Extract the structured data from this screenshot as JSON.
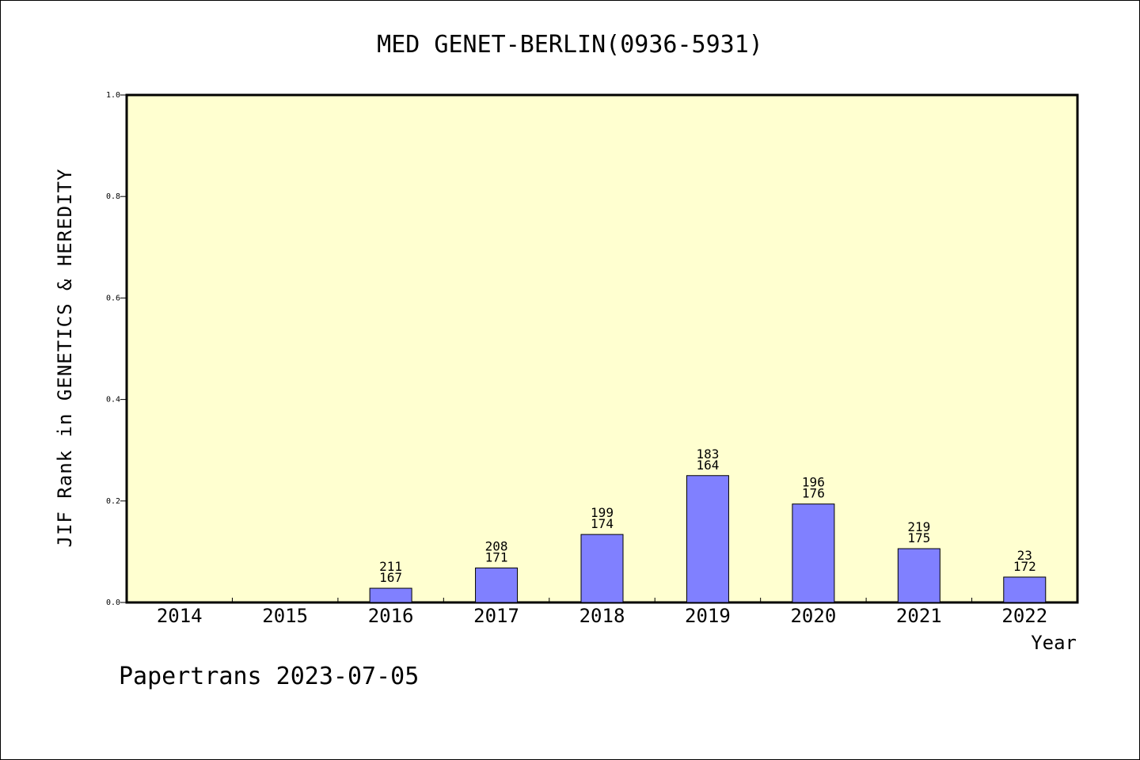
{
  "chart_data": {
    "type": "bar",
    "title": "MED GENET-BERLIN(0936-5931)",
    "xlabel": "Year",
    "ylabel": "JIF Rank in GENETICS & HEREDITY",
    "ylim": [
      0,
      1.0
    ],
    "yticks": [
      "0.0",
      "0.2",
      "0.4",
      "0.6",
      "0.8",
      "1.0"
    ],
    "categories": [
      "2014",
      "2015",
      "2016",
      "2017",
      "2018",
      "2019",
      "2020",
      "2021",
      "2022"
    ],
    "values": [
      null,
      null,
      0.028,
      0.068,
      0.134,
      0.25,
      0.194,
      0.106,
      0.05
    ],
    "total_counts": [
      "",
      "",
      "211",
      "208",
      "199",
      "183",
      "196",
      "219",
      "23"
    ],
    "rank_counts": [
      "",
      "",
      "167",
      "171",
      "174",
      "164",
      "176",
      "175",
      "172"
    ],
    "grid": false,
    "colors": {
      "plot_background": "#ffffd0",
      "bar_fill": "#8080ff",
      "bar_stroke": "#000000"
    }
  },
  "footer": "Papertrans 2023-07-05"
}
